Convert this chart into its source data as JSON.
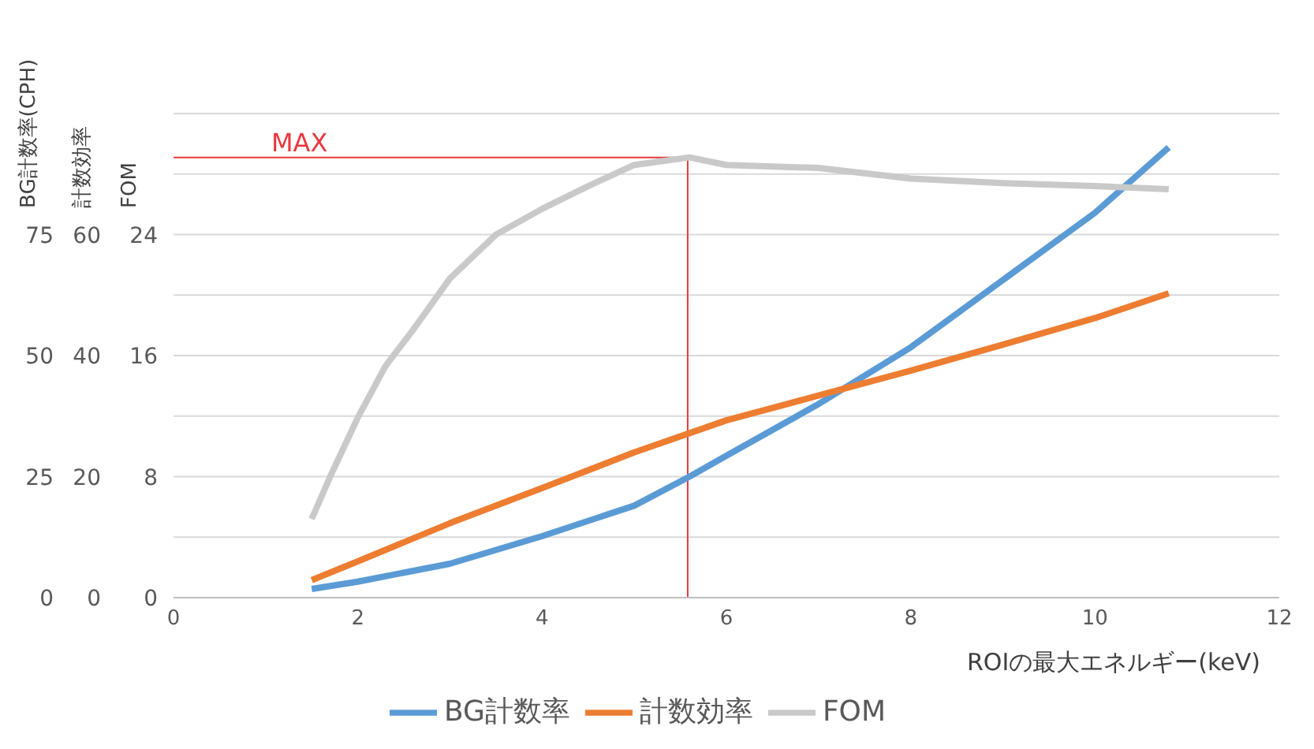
{
  "chart_data": {
    "type": "line",
    "xlabel": "ROIの最大エネルギー(keV)",
    "ylabel": "BG計数率(CPH)",
    "y2label": "計数効率",
    "y3label": "FOM",
    "xlim": [
      0,
      12
    ],
    "xticks": [
      0,
      2,
      4,
      6,
      8,
      10,
      12
    ],
    "ylim": [
      0,
      100
    ],
    "yticks": [
      0,
      {
        "value": 12.5,
        "label": null
      },
      25,
      {
        "value": 37.5,
        "label": null
      },
      50,
      {
        "value": 62.5,
        "label": null
      },
      75,
      {
        "value": 87.5,
        "label": null
      },
      {
        "value": 100,
        "label": null
      }
    ],
    "y2lim": [
      0,
      80
    ],
    "y2ticks": [
      0,
      20,
      40,
      60
    ],
    "y3lim": [
      0,
      32
    ],
    "y3ticks": [
      0,
      8,
      16,
      24
    ],
    "grid": "y",
    "legend": "bottom",
    "marker": "none",
    "line_style": "solid",
    "ref_lines": [
      {
        "axis": "x",
        "value": 5.58,
        "color": "#e8383d"
      },
      {
        "axis": "y3",
        "value": 29.1,
        "label": "MAX",
        "color": "#e8383d"
      }
    ],
    "series": [
      {
        "name": "BG計数率",
        "color": "#5b9bd5",
        "x": [
          1.5,
          2,
          3,
          4,
          5,
          5.6,
          6,
          7,
          8,
          9,
          10,
          10.8
        ],
        "values": [
          1.8,
          3.3,
          7,
          12.7,
          19,
          25,
          29.3,
          40,
          51.7,
          65.6,
          79.5,
          93
        ]
      },
      {
        "name": "計数効率",
        "color": "#ed7d31",
        "axis": "y2",
        "x": [
          1.5,
          2,
          3,
          4,
          5,
          6,
          7,
          8,
          9,
          10,
          10.8
        ],
        "values": [
          2.9,
          6,
          12.3,
          18.1,
          24,
          29.3,
          33.4,
          37.5,
          41.8,
          46.2,
          50.3
        ]
      },
      {
        "name": "FOM",
        "color": "#c9c9c9",
        "axis": "y3",
        "x": [
          1.5,
          1.7,
          2,
          2.3,
          2.6,
          3,
          3.5,
          4,
          4.5,
          5,
          5.6,
          6,
          7,
          8,
          9,
          10,
          10.8
        ],
        "values": [
          5.2,
          8,
          11.9,
          15.3,
          17.7,
          21.1,
          24,
          25.7,
          27.2,
          28.6,
          29.1,
          28.6,
          28.4,
          27.7,
          27.4,
          27.2,
          27
        ]
      }
    ]
  }
}
